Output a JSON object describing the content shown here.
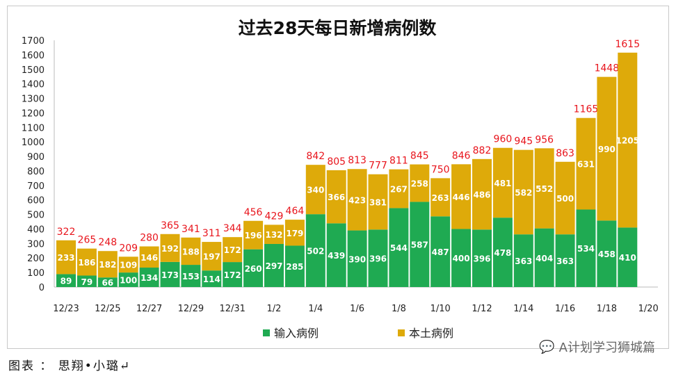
{
  "chart_data": {
    "type": "bar",
    "stacked": true,
    "title": "过去28天每日新增病例数",
    "categories": [
      "12/23",
      "12/24",
      "12/25",
      "12/26",
      "12/27",
      "12/28",
      "12/29",
      "12/30",
      "12/31",
      "1/1",
      "1/2",
      "1/3",
      "1/4",
      "1/5",
      "1/6",
      "1/7",
      "1/8",
      "1/9",
      "1/10",
      "1/11",
      "1/12",
      "1/13",
      "1/14",
      "1/15",
      "1/16",
      "1/17",
      "1/18",
      "1/19"
    ],
    "x_tick_labels": [
      "12/23",
      "12/25",
      "12/27",
      "12/29",
      "12/31",
      "1/2",
      "1/4",
      "1/6",
      "1/8",
      "1/10",
      "1/12",
      "1/14",
      "1/16",
      "1/18",
      "1/20"
    ],
    "series": [
      {
        "name": "输入病例",
        "color": "#1faa52",
        "values": [
          89,
          79,
          66,
          100,
          134,
          173,
          153,
          114,
          172,
          260,
          297,
          285,
          502,
          439,
          390,
          396,
          544,
          587,
          487,
          400,
          396,
          478,
          363,
          404,
          363,
          534,
          458,
          410
        ]
      },
      {
        "name": "本土病例",
        "color": "#deaa0a",
        "values": [
          233,
          186,
          182,
          109,
          146,
          192,
          188,
          197,
          172,
          196,
          132,
          179,
          340,
          366,
          423,
          381,
          267,
          258,
          263,
          446,
          486,
          481,
          582,
          552,
          500,
          631,
          990,
          1205
        ]
      }
    ],
    "totals": [
      322,
      265,
      248,
      209,
      280,
      365,
      341,
      311,
      344,
      456,
      429,
      464,
      842,
      805,
      813,
      777,
      811,
      845,
      750,
      846,
      882,
      960,
      945,
      956,
      863,
      1165,
      1448,
      1615
    ],
    "total_label_color": "#e8141c",
    "ylim": [
      0,
      1700
    ],
    "y_ticks": [
      0,
      100,
      200,
      300,
      400,
      500,
      600,
      700,
      800,
      900,
      1000,
      1100,
      1200,
      1300,
      1400,
      1500,
      1600,
      1700
    ],
    "grid": false,
    "legend": "bottom"
  },
  "footer": "图表 ： 思翔•小璐↵",
  "watermark": "A计划学习狮城篇"
}
